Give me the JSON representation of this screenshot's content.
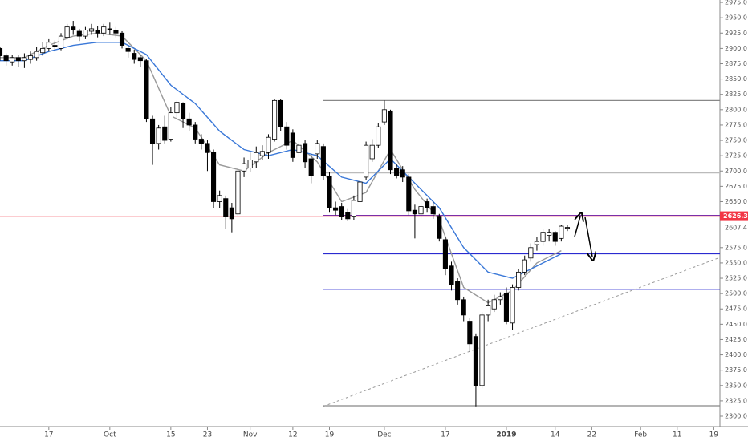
{
  "chart_data": {
    "type": "candlestick",
    "open": [
      2900,
      2888,
      2878,
      2885,
      2880,
      2882,
      2885,
      2893,
      2900,
      2905,
      2900,
      2918,
      2935,
      2928,
      2920,
      2928,
      2930,
      2925,
      2932,
      2930,
      2925,
      2900,
      2892,
      2885,
      2880,
      2785,
      2745,
      2772,
      2752,
      2795,
      2810,
      2785,
      2775,
      2752,
      2745,
      2730,
      2650,
      2655,
      2640,
      2630,
      2700,
      2705,
      2715,
      2725,
      2730,
      2752,
      2815,
      2772,
      2762,
      2730,
      2745,
      2720,
      2728,
      2740,
      2692,
      2640,
      2642,
      2632,
      2625,
      2650,
      2690,
      2720,
      2742,
      2780,
      2798,
      2705,
      2702,
      2690,
      2636,
      2630,
      2650,
      2642,
      2625,
      2588,
      2545,
      2520,
      2490,
      2455,
      2430,
      2350,
      2465,
      2475,
      2490,
      2500,
      2452,
      2510,
      2535,
      2558,
      2580,
      2585,
      2595,
      2600,
      2590,
      2607
    ],
    "high": [
      2902,
      2892,
      2890,
      2890,
      2892,
      2895,
      2902,
      2910,
      2915,
      2913,
      2925,
      2940,
      2945,
      2932,
      2935,
      2940,
      2936,
      2940,
      2942,
      2935,
      2928,
      2905,
      2898,
      2890,
      2882,
      2790,
      2775,
      2790,
      2805,
      2815,
      2812,
      2795,
      2780,
      2760,
      2750,
      2735,
      2668,
      2660,
      2648,
      2705,
      2722,
      2730,
      2740,
      2742,
      2760,
      2818,
      2818,
      2780,
      2768,
      2752,
      2750,
      2728,
      2750,
      2745,
      2698,
      2650,
      2648,
      2638,
      2660,
      2690,
      2748,
      2752,
      2778,
      2815,
      2800,
      2712,
      2708,
      2695,
      2645,
      2650,
      2655,
      2650,
      2630,
      2592,
      2552,
      2525,
      2495,
      2460,
      2435,
      2470,
      2490,
      2498,
      2502,
      2510,
      2515,
      2540,
      2562,
      2582,
      2592,
      2605,
      2605,
      2602,
      2612,
      2612
    ],
    "low": [
      2880,
      2872,
      2872,
      2870,
      2868,
      2875,
      2880,
      2888,
      2895,
      2895,
      2897,
      2915,
      2922,
      2912,
      2915,
      2922,
      2918,
      2920,
      2922,
      2918,
      2900,
      2885,
      2875,
      2870,
      2780,
      2710,
      2735,
      2745,
      2748,
      2785,
      2770,
      2765,
      2745,
      2735,
      2700,
      2640,
      2640,
      2605,
      2600,
      2625,
      2690,
      2698,
      2705,
      2718,
      2720,
      2748,
      2765,
      2735,
      2715,
      2722,
      2705,
      2680,
      2720,
      2685,
      2632,
      2628,
      2620,
      2618,
      2620,
      2645,
      2685,
      2715,
      2738,
      2775,
      2695,
      2688,
      2682,
      2628,
      2590,
      2622,
      2632,
      2622,
      2585,
      2530,
      2505,
      2482,
      2455,
      2405,
      2316,
      2345,
      2455,
      2470,
      2482,
      2450,
      2440,
      2505,
      2530,
      2552,
      2570,
      2578,
      2585,
      2578,
      2585,
      2602
    ],
    "close": [
      2888,
      2880,
      2885,
      2880,
      2885,
      2888,
      2895,
      2900,
      2910,
      2903,
      2920,
      2935,
      2930,
      2920,
      2930,
      2932,
      2925,
      2935,
      2930,
      2925,
      2905,
      2895,
      2882,
      2880,
      2785,
      2745,
      2770,
      2750,
      2795,
      2812,
      2785,
      2775,
      2752,
      2745,
      2730,
      2650,
      2660,
      2625,
      2622,
      2700,
      2712,
      2718,
      2730,
      2732,
      2755,
      2815,
      2772,
      2742,
      2722,
      2742,
      2715,
      2692,
      2745,
      2692,
      2640,
      2636,
      2625,
      2622,
      2652,
      2682,
      2742,
      2742,
      2772,
      2800,
      2702,
      2692,
      2690,
      2635,
      2630,
      2642,
      2640,
      2630,
      2590,
      2540,
      2515,
      2490,
      2465,
      2418,
      2350,
      2465,
      2480,
      2490,
      2495,
      2455,
      2510,
      2535,
      2555,
      2575,
      2585,
      2600,
      2600,
      2585,
      2610,
      2608
    ],
    "series": [
      {
        "color": "#999999",
        "x": [
          0,
          4,
          8,
          12,
          16,
          20,
          24,
          28,
          32,
          36,
          40,
          44,
          48,
          52,
          56,
          60,
          64,
          68,
          72,
          76,
          80,
          84,
          88,
          92
        ],
        "values": [
          2885,
          2885,
          2905,
          2920,
          2925,
          2920,
          2880,
          2790,
          2770,
          2710,
          2700,
          2730,
          2750,
          2715,
          2650,
          2665,
          2735,
          2670,
          2620,
          2510,
          2485,
          2505,
          2550,
          2570
        ]
      },
      {
        "color": "#3a78d8",
        "x": [
          0,
          4,
          8,
          12,
          16,
          20,
          24,
          28,
          32,
          36,
          40,
          44,
          48,
          52,
          56,
          60,
          64,
          68,
          72,
          76,
          80,
          84,
          88,
          92
        ],
        "values": [
          2880,
          2880,
          2895,
          2905,
          2910,
          2910,
          2890,
          2840,
          2810,
          2765,
          2735,
          2725,
          2735,
          2725,
          2690,
          2680,
          2720,
          2680,
          2640,
          2575,
          2535,
          2525,
          2545,
          2565
        ]
      }
    ],
    "hlines": [
      {
        "value": 2815,
        "color": "#888888",
        "start": 53
      },
      {
        "value": 2697,
        "color": "#bbbbbb",
        "start": 53
      },
      {
        "value": 2317,
        "color": "#888888",
        "start": 53
      },
      {
        "value": 2565,
        "color": "#2a2ad0",
        "start": 53
      },
      {
        "value": 2507,
        "color": "#2a2ad0",
        "start": 53
      },
      {
        "value": 2626.3,
        "color": "#f23645",
        "start": 0
      },
      {
        "value": 2627.5,
        "color": "#7b2fa8",
        "start": 53
      }
    ],
    "trendline": {
      "x": [
        53,
        118
      ],
      "values": [
        2316,
        2559
      ],
      "color": "#999999"
    },
    "price_label": 2607.4,
    "xlim": [
      0,
      118
    ],
    "xticks": [
      {
        "value": 8,
        "label": "17"
      },
      {
        "value": 18,
        "label": "Oct"
      },
      {
        "value": 28,
        "label": "15"
      },
      {
        "value": 34,
        "label": "23"
      },
      {
        "value": 41,
        "label": "Nov"
      },
      {
        "value": 48,
        "label": "12"
      },
      {
        "value": 54,
        "label": "19"
      },
      {
        "value": 63,
        "label": "Dec"
      },
      {
        "value": 73,
        "label": "17"
      },
      {
        "value": 83,
        "label": "2019"
      },
      {
        "value": 91,
        "label": "14"
      },
      {
        "value": 97,
        "label": "22"
      },
      {
        "value": 105,
        "label": "Feb"
      },
      {
        "value": 111,
        "label": "11"
      },
      {
        "value": 117,
        "label": "19"
      }
    ],
    "ylim": [
      2283,
      2979
    ],
    "yticks": [
      {
        "value": 2300,
        "label": "2300.0"
      },
      {
        "value": 2325,
        "label": "2325.0"
      },
      {
        "value": 2350,
        "label": "2350.0"
      },
      {
        "value": 2375,
        "label": "2375.0"
      },
      {
        "value": 2400,
        "label": "2400.0"
      },
      {
        "value": 2425,
        "label": "2425.0"
      },
      {
        "value": 2450,
        "label": "2450.0"
      },
      {
        "value": 2475,
        "label": "2475.0"
      },
      {
        "value": 2500,
        "label": "2500.0"
      },
      {
        "value": 2525,
        "label": "2525.0"
      },
      {
        "value": 2550,
        "label": "2550.0"
      },
      {
        "value": 2575,
        "label": "2575.0"
      },
      {
        "value": 2650,
        "label": "2650.0"
      },
      {
        "value": 2675,
        "label": "2675.0"
      },
      {
        "value": 2700,
        "label": "2700.0"
      },
      {
        "value": 2725,
        "label": "2725.0"
      },
      {
        "value": 2750,
        "label": "2750.0"
      },
      {
        "value": 2775,
        "label": "2775.0"
      },
      {
        "value": 2800,
        "label": "2800.0"
      },
      {
        "value": 2825,
        "label": "2825.0"
      },
      {
        "value": 2850,
        "label": "2850.0"
      },
      {
        "value": 2875,
        "label": "2875.0"
      },
      {
        "value": 2900,
        "label": "2900.0"
      },
      {
        "value": 2925,
        "label": "2925.0"
      },
      {
        "value": 2950,
        "label": "2950.0"
      },
      {
        "value": 2975,
        "label": "2975.0"
      }
    ]
  }
}
